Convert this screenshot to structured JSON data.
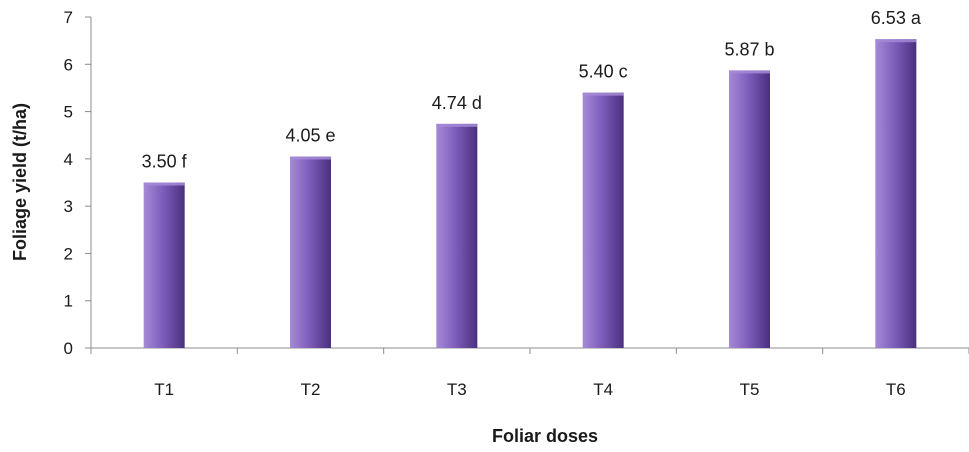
{
  "chart_data": {
    "type": "bar",
    "categories": [
      "T1",
      "T2",
      "T3",
      "T4",
      "T5",
      "T6"
    ],
    "values": [
      3.5,
      4.05,
      4.74,
      5.4,
      5.87,
      6.53
    ],
    "data_labels": [
      "3.50 f",
      "4.05 e",
      "4.74 d",
      "5.40 c",
      "5.87 b",
      "6.53 a"
    ],
    "y_ticks": [
      "0",
      "1",
      "2",
      "3",
      "4",
      "5",
      "6",
      "7"
    ],
    "xlabel": "Foliar doses",
    "ylabel": "Foliage yield (t/ha)",
    "ylim": [
      0,
      7
    ],
    "grid": false,
    "colors": {
      "bar_light": "#a58ad6",
      "bar_mid": "#7f5fbd",
      "bar_dark": "#4a2f7e",
      "axis": "#8c8c8c"
    }
  }
}
